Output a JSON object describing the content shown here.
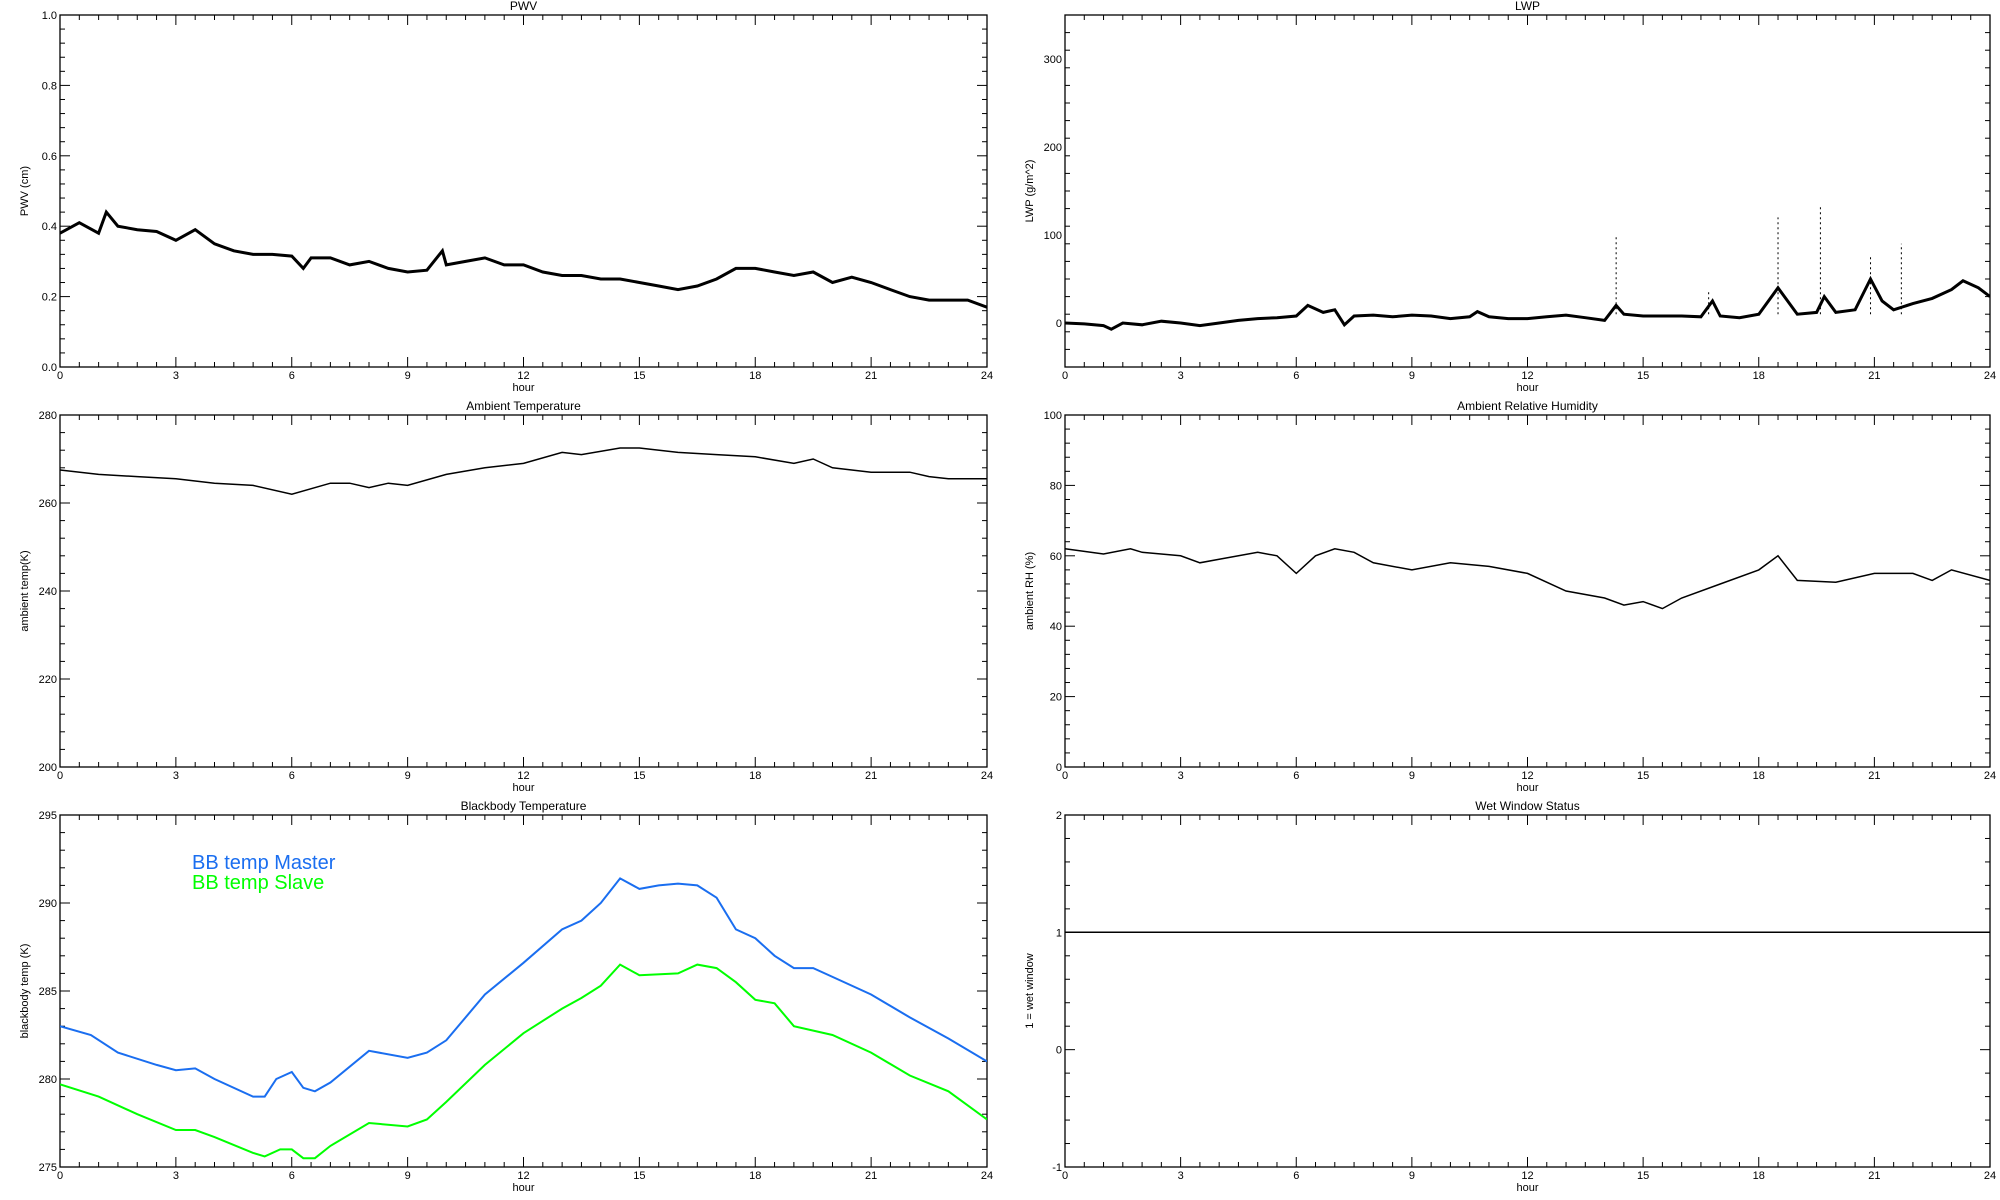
{
  "colors": {
    "axis": "#000000",
    "data": "#000000",
    "master": "#1a6ef0",
    "slave": "#00ff00"
  },
  "chart_data": [
    {
      "id": "pwv",
      "type": "line",
      "title": "PWV",
      "xlabel": "hour",
      "ylabel": "PWV (cm)",
      "xlim": [
        0,
        24
      ],
      "ylim": [
        0,
        1
      ],
      "xticks": [
        0,
        3,
        6,
        9,
        12,
        15,
        18,
        21,
        24
      ],
      "yticks": [
        0.0,
        0.2,
        0.4,
        0.6,
        0.8,
        1.0
      ],
      "ytick_labels": [
        "0.0",
        "0.2",
        "0.4",
        "0.6",
        "0.8",
        "1.0"
      ],
      "series": [
        {
          "name": "PWV",
          "color": "#000000",
          "x": [
            0,
            0.5,
            1,
            1.2,
            1.5,
            2,
            2.5,
            3,
            3.5,
            4,
            4.5,
            5,
            5.5,
            6,
            6.3,
            6.5,
            7,
            7.5,
            8,
            8.5,
            9,
            9.5,
            9.9,
            10,
            10.5,
            11,
            11.5,
            12,
            12.5,
            13,
            13.5,
            14,
            14.5,
            15,
            15.5,
            16,
            16.5,
            17,
            17.5,
            18,
            18.5,
            19,
            19.5,
            20,
            20.5,
            21,
            21.5,
            22,
            22.5,
            23,
            23.5,
            24
          ],
          "y": [
            0.38,
            0.41,
            0.38,
            0.44,
            0.4,
            0.39,
            0.385,
            0.36,
            0.39,
            0.35,
            0.33,
            0.32,
            0.32,
            0.315,
            0.28,
            0.31,
            0.31,
            0.29,
            0.3,
            0.28,
            0.27,
            0.275,
            0.33,
            0.29,
            0.3,
            0.31,
            0.29,
            0.29,
            0.27,
            0.26,
            0.26,
            0.25,
            0.25,
            0.24,
            0.23,
            0.22,
            0.23,
            0.25,
            0.28,
            0.28,
            0.27,
            0.26,
            0.27,
            0.24,
            0.255,
            0.24,
            0.22,
            0.2,
            0.19,
            0.19,
            0.19,
            0.17
          ]
        }
      ]
    },
    {
      "id": "lwp",
      "type": "line",
      "title": "LWP",
      "xlabel": "hour",
      "ylabel": "LWP (g/m^2)",
      "xlim": [
        0,
        24
      ],
      "ylim": [
        -50,
        350
      ],
      "xticks": [
        0,
        3,
        6,
        9,
        12,
        15,
        18,
        21,
        24
      ],
      "yticks": [
        0,
        100,
        200,
        300
      ],
      "ytick_labels": [
        "0",
        "100",
        "200",
        "300"
      ],
      "series": [
        {
          "name": "LWP",
          "color": "#000000",
          "x": [
            0,
            0.5,
            1,
            1.2,
            1.5,
            2,
            2.5,
            3,
            3.5,
            4,
            4.5,
            5,
            5.5,
            6,
            6.3,
            6.7,
            7,
            7.25,
            7.5,
            8,
            8.5,
            9,
            9.5,
            10,
            10.5,
            10.7,
            11,
            11.5,
            12,
            12.5,
            13,
            13.5,
            14,
            14.3,
            14.5,
            15,
            15.5,
            16,
            16.5,
            16.8,
            17,
            17.5,
            18,
            18.5,
            19,
            19.5,
            19.7,
            20,
            20.5,
            20.9,
            21.2,
            21.5,
            22,
            22.5,
            23,
            23.3,
            23.7,
            24
          ],
          "y": [
            0,
            -1,
            -3,
            -7,
            0,
            -2,
            2,
            0,
            -3,
            0,
            3,
            5,
            6,
            8,
            20,
            12,
            15,
            -2,
            8,
            9,
            7,
            9,
            8,
            5,
            7,
            13,
            7,
            5,
            5,
            7,
            9,
            6,
            3,
            20,
            10,
            8,
            8,
            8,
            7,
            25,
            8,
            6,
            10,
            40,
            10,
            12,
            30,
            12,
            15,
            50,
            25,
            15,
            22,
            28,
            38,
            48,
            40,
            30
          ]
        }
      ],
      "spikes": [
        {
          "x": 14.3,
          "y": 100
        },
        {
          "x": 16.7,
          "y": 38
        },
        {
          "x": 18.5,
          "y": 120
        },
        {
          "x": 19.6,
          "y": 132
        },
        {
          "x": 20.9,
          "y": 78
        },
        {
          "x": 21.7,
          "y": 90
        }
      ]
    },
    {
      "id": "ambtemp",
      "type": "line",
      "title": "Ambient Temperature",
      "xlabel": "hour",
      "ylabel": "ambient temp(K)",
      "xlim": [
        0,
        24
      ],
      "ylim": [
        200,
        280
      ],
      "xticks": [
        0,
        3,
        6,
        9,
        12,
        15,
        18,
        21,
        24
      ],
      "yticks": [
        200,
        220,
        240,
        260,
        280
      ],
      "ytick_labels": [
        "200",
        "220",
        "240",
        "260",
        "280"
      ],
      "series": [
        {
          "name": "ambient temp",
          "color": "#000000",
          "x": [
            0,
            1,
            2,
            3,
            4,
            5,
            6,
            7,
            7.5,
            8,
            8.5,
            9,
            10,
            11,
            12,
            13,
            13.5,
            14.5,
            15,
            16,
            17,
            18,
            19,
            19.5,
            20,
            21,
            22,
            22.5,
            23,
            24
          ],
          "y": [
            267.5,
            266.5,
            266,
            265.5,
            264.5,
            264,
            262,
            264.5,
            264.5,
            263.5,
            264.5,
            264,
            266.5,
            268,
            269,
            271.5,
            271,
            272.5,
            272.5,
            271.5,
            271,
            270.5,
            269,
            270,
            268,
            267,
            267,
            266,
            265.5,
            265.5
          ]
        }
      ]
    },
    {
      "id": "rh",
      "type": "line",
      "title": "Ambient Relative Humidity",
      "xlabel": "hour",
      "ylabel": "ambient RH (%)",
      "xlim": [
        0,
        24
      ],
      "ylim": [
        0,
        100
      ],
      "xticks": [
        0,
        3,
        6,
        9,
        12,
        15,
        18,
        21,
        24
      ],
      "yticks": [
        0,
        20,
        40,
        60,
        80,
        100
      ],
      "ytick_labels": [
        "0",
        "20",
        "40",
        "60",
        "80",
        "100"
      ],
      "series": [
        {
          "name": "ambient RH",
          "color": "#000000",
          "x": [
            0,
            1,
            1.7,
            2,
            3,
            3.5,
            4,
            5,
            5.5,
            6,
            6.5,
            7,
            7.5,
            8,
            9,
            10,
            11,
            12,
            13,
            14,
            14.5,
            15,
            15.5,
            16,
            17,
            18,
            18.5,
            19,
            20,
            21,
            22,
            22.5,
            23,
            24
          ],
          "y": [
            62,
            60.5,
            62,
            61,
            60,
            58,
            59,
            61,
            60,
            55,
            60,
            62,
            61,
            58,
            56,
            58,
            57,
            55,
            50,
            48,
            46,
            47,
            45,
            48,
            52,
            56,
            60,
            53,
            52.5,
            55,
            55,
            53,
            56,
            53
          ]
        }
      ]
    },
    {
      "id": "bbtemp",
      "type": "line",
      "title": "Blackbody Temperature",
      "xlabel": "hour",
      "ylabel": "blackbody temp (K)",
      "xlim": [
        0,
        24
      ],
      "ylim": [
        275,
        295
      ],
      "xticks": [
        0,
        3,
        6,
        9,
        12,
        15,
        18,
        21,
        24
      ],
      "yticks": [
        275,
        280,
        285,
        290,
        295
      ],
      "ytick_labels": [
        "275",
        "280",
        "285",
        "290",
        "295"
      ],
      "legend": {
        "position": "top-left"
      },
      "series": [
        {
          "name": "BB temp Master",
          "color": "#1a6ef0",
          "x": [
            0,
            0.8,
            1.5,
            2.5,
            3,
            3.5,
            4,
            5,
            5.3,
            5.6,
            6,
            6.3,
            6.6,
            7,
            8,
            9,
            9.5,
            10,
            11,
            12,
            13,
            13.5,
            14,
            14.5,
            15,
            15.5,
            16,
            16.5,
            17,
            17.5,
            18,
            18.5,
            19,
            19.5,
            20,
            21,
            22,
            23,
            24
          ],
          "y": [
            283,
            282.5,
            281.5,
            280.8,
            280.5,
            280.6,
            280,
            279,
            279,
            280,
            280.4,
            279.5,
            279.3,
            279.8,
            281.6,
            281.2,
            281.5,
            282.2,
            284.8,
            286.6,
            288.5,
            289,
            290,
            291.4,
            290.8,
            291,
            291.1,
            291,
            290.3,
            288.5,
            288,
            287,
            286.3,
            286.3,
            285.8,
            284.8,
            283.5,
            282.3,
            281
          ]
        },
        {
          "name": "BB temp Slave",
          "color": "#00ff00",
          "x": [
            0,
            1,
            2,
            3,
            3.5,
            4,
            5,
            5.3,
            5.7,
            6,
            6.3,
            6.6,
            7,
            8,
            9,
            9.5,
            10,
            11,
            12,
            13,
            13.5,
            14,
            14.5,
            15,
            16,
            16.5,
            17,
            17.5,
            18,
            18.5,
            19,
            20,
            21,
            22,
            23,
            24
          ],
          "y": [
            279.7,
            279,
            278,
            277.1,
            277.1,
            276.7,
            275.8,
            275.6,
            276,
            276,
            275.5,
            275.5,
            276.2,
            277.5,
            277.3,
            277.7,
            278.7,
            280.8,
            282.6,
            284,
            284.6,
            285.3,
            286.5,
            285.9,
            286,
            286.5,
            286.3,
            285.5,
            284.5,
            284.3,
            283,
            282.5,
            281.5,
            280.2,
            279.3,
            277.7
          ]
        }
      ]
    },
    {
      "id": "wetwin",
      "type": "line",
      "title": "Wet Window Status",
      "xlabel": "hour",
      "ylabel": "1 = wet window",
      "xlim": [
        0,
        24
      ],
      "ylim": [
        -1,
        2
      ],
      "xticks": [
        0,
        3,
        6,
        9,
        12,
        15,
        18,
        21,
        24
      ],
      "yticks": [
        -1,
        0,
        1,
        2
      ],
      "ytick_labels": [
        "-1",
        "0",
        "1",
        "2"
      ],
      "series": [
        {
          "name": "wet window",
          "color": "#000000",
          "x": [
            0,
            24
          ],
          "y": [
            1,
            1
          ]
        }
      ]
    }
  ]
}
